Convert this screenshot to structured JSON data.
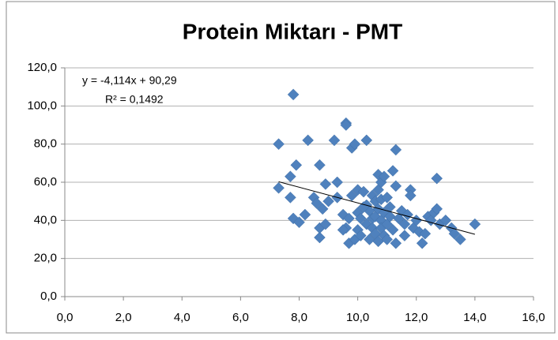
{
  "chart_data": {
    "type": "scatter",
    "title": "Protein Miktarı - PMT",
    "color": "#4f81bd",
    "grid": true,
    "xlim": [
      0,
      16
    ],
    "ylim": [
      0,
      120
    ],
    "xticks": [
      {
        "value": 0,
        "label": "0,0"
      },
      {
        "value": 2,
        "label": "2,0"
      },
      {
        "value": 4,
        "label": "4,0"
      },
      {
        "value": 6,
        "label": "6,0"
      },
      {
        "value": 8,
        "label": "8,0"
      },
      {
        "value": 10,
        "label": "10,0"
      },
      {
        "value": 12,
        "label": "12,0"
      },
      {
        "value": 14,
        "label": "14,0"
      },
      {
        "value": 16,
        "label": "16,0"
      }
    ],
    "yticks": [
      {
        "value": 0,
        "label": "0,0"
      },
      {
        "value": 20,
        "label": "20,0"
      },
      {
        "value": 40,
        "label": "40,0"
      },
      {
        "value": 60,
        "label": "60,0"
      },
      {
        "value": 80,
        "label": "80,0"
      },
      {
        "value": 100,
        "label": "100,0"
      },
      {
        "value": 120,
        "label": "120,0"
      }
    ],
    "trendline": {
      "label": "y = -4,114x + 90,29",
      "slope": -4.114,
      "intercept": 90.29,
      "x": [
        7.3,
        14.0
      ],
      "r2_label": "R² = 0,1492"
    },
    "x": [
      7.3,
      7.8,
      7.3,
      7.7,
      7.7,
      7.9,
      7.8,
      8.0,
      8.2,
      8.3,
      8.5,
      8.6,
      8.7,
      8.7,
      8.7,
      8.8,
      8.9,
      8.9,
      9.0,
      9.2,
      9.3,
      9.3,
      9.5,
      9.6,
      9.6,
      9.6,
      9.7,
      9.7,
      9.8,
      9.8,
      9.9,
      9.9,
      10.0,
      10.0,
      10.0,
      10.1,
      10.1,
      10.2,
      10.3,
      10.3,
      10.3,
      10.4,
      10.4,
      10.5,
      10.5,
      10.5,
      10.6,
      10.6,
      10.6,
      10.7,
      10.7,
      10.7,
      10.7,
      10.8,
      10.8,
      10.8,
      10.8,
      10.9,
      10.9,
      10.9,
      11.0,
      11.0,
      11.1,
      11.1,
      11.2,
      11.2,
      11.3,
      11.3,
      11.3,
      11.4,
      11.5,
      11.6,
      11.6,
      11.7,
      11.8,
      11.8,
      11.9,
      12.0,
      12.1,
      12.2,
      12.3,
      12.4,
      12.5,
      12.6,
      12.7,
      12.7,
      12.8,
      13.0,
      13.2,
      13.3,
      13.5,
      14.0,
      11.0,
      10.2,
      9.5
    ],
    "values": [
      80,
      106,
      57,
      63,
      52,
      69,
      41,
      39,
      43,
      82,
      52,
      49,
      69,
      31,
      36,
      46,
      38,
      59,
      50,
      82,
      60,
      52,
      43,
      91,
      90,
      36,
      41,
      28,
      78,
      53,
      80,
      30,
      56,
      44,
      35,
      41,
      32,
      55,
      82,
      48,
      38,
      45,
      30,
      53,
      41,
      36,
      50,
      42,
      33,
      64,
      56,
      46,
      29,
      60,
      51,
      40,
      36,
      63,
      44,
      32,
      52,
      38,
      47,
      42,
      66,
      35,
      77,
      58,
      28,
      41,
      45,
      38,
      32,
      43,
      56,
      53,
      36,
      40,
      34,
      28,
      33,
      42,
      40,
      44,
      62,
      46,
      38,
      40,
      36,
      33,
      30,
      38,
      30,
      47,
      35
    ]
  }
}
